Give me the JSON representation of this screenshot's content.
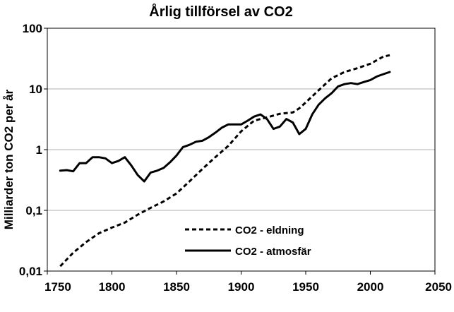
{
  "chart_data": {
    "type": "line",
    "title": "Årlig tillförsel av CO2",
    "xlabel": "",
    "ylabel": "Milliarder ton CO2 per år",
    "y_scale": "log",
    "xlim": [
      1750,
      2050
    ],
    "ylim": [
      0.01,
      100
    ],
    "x_ticks": [
      1750,
      1800,
      1850,
      1900,
      1950,
      2000,
      2050
    ],
    "x_tick_labels": [
      "1750",
      "1800",
      "1850",
      "1900",
      "1950",
      "2000",
      "2050"
    ],
    "y_ticks": [
      0.01,
      0.1,
      1,
      10,
      100
    ],
    "y_tick_labels": [
      "0,01",
      "0,1",
      "1",
      "10",
      "100"
    ],
    "grid": "horizontal",
    "legend_position": "lower-center",
    "series": [
      {
        "name": "CO2 - eldning",
        "style": "dashed",
        "color": "#000000",
        "x": [
          1760,
          1770,
          1780,
          1790,
          1800,
          1810,
          1820,
          1830,
          1840,
          1850,
          1860,
          1870,
          1880,
          1890,
          1900,
          1910,
          1920,
          1930,
          1940,
          1945,
          1950,
          1960,
          1970,
          1980,
          1990,
          2000,
          2010,
          2015
        ],
        "y": [
          0.012,
          0.02,
          0.03,
          0.042,
          0.052,
          0.063,
          0.085,
          0.11,
          0.14,
          0.19,
          0.3,
          0.48,
          0.75,
          1.15,
          2.0,
          3.0,
          3.4,
          3.9,
          4.1,
          4.8,
          6.0,
          9.5,
          15,
          19,
          22,
          26,
          34,
          36
        ]
      },
      {
        "name": "CO2 - atmosfär",
        "style": "solid",
        "color": "#000000",
        "x": [
          1760,
          1765,
          1770,
          1775,
          1780,
          1785,
          1790,
          1795,
          1800,
          1805,
          1810,
          1815,
          1820,
          1825,
          1830,
          1835,
          1840,
          1845,
          1850,
          1855,
          1860,
          1865,
          1870,
          1875,
          1880,
          1885,
          1890,
          1895,
          1900,
          1905,
          1910,
          1915,
          1920,
          1925,
          1930,
          1935,
          1940,
          1945,
          1950,
          1955,
          1960,
          1965,
          1970,
          1975,
          1980,
          1985,
          1990,
          1995,
          2000,
          2005,
          2010,
          2015
        ],
        "y": [
          0.45,
          0.46,
          0.44,
          0.6,
          0.6,
          0.75,
          0.75,
          0.72,
          0.6,
          0.65,
          0.75,
          0.55,
          0.38,
          0.3,
          0.42,
          0.45,
          0.5,
          0.62,
          0.8,
          1.1,
          1.2,
          1.35,
          1.4,
          1.6,
          1.9,
          2.3,
          2.6,
          2.6,
          2.6,
          3.0,
          3.5,
          3.8,
          3.2,
          2.2,
          2.4,
          3.2,
          2.8,
          1.8,
          2.2,
          3.8,
          5.5,
          7.0,
          8.5,
          11.0,
          12.0,
          12.5,
          12.0,
          13.0,
          14.0,
          16.0,
          17.5,
          19.0
        ]
      }
    ]
  }
}
